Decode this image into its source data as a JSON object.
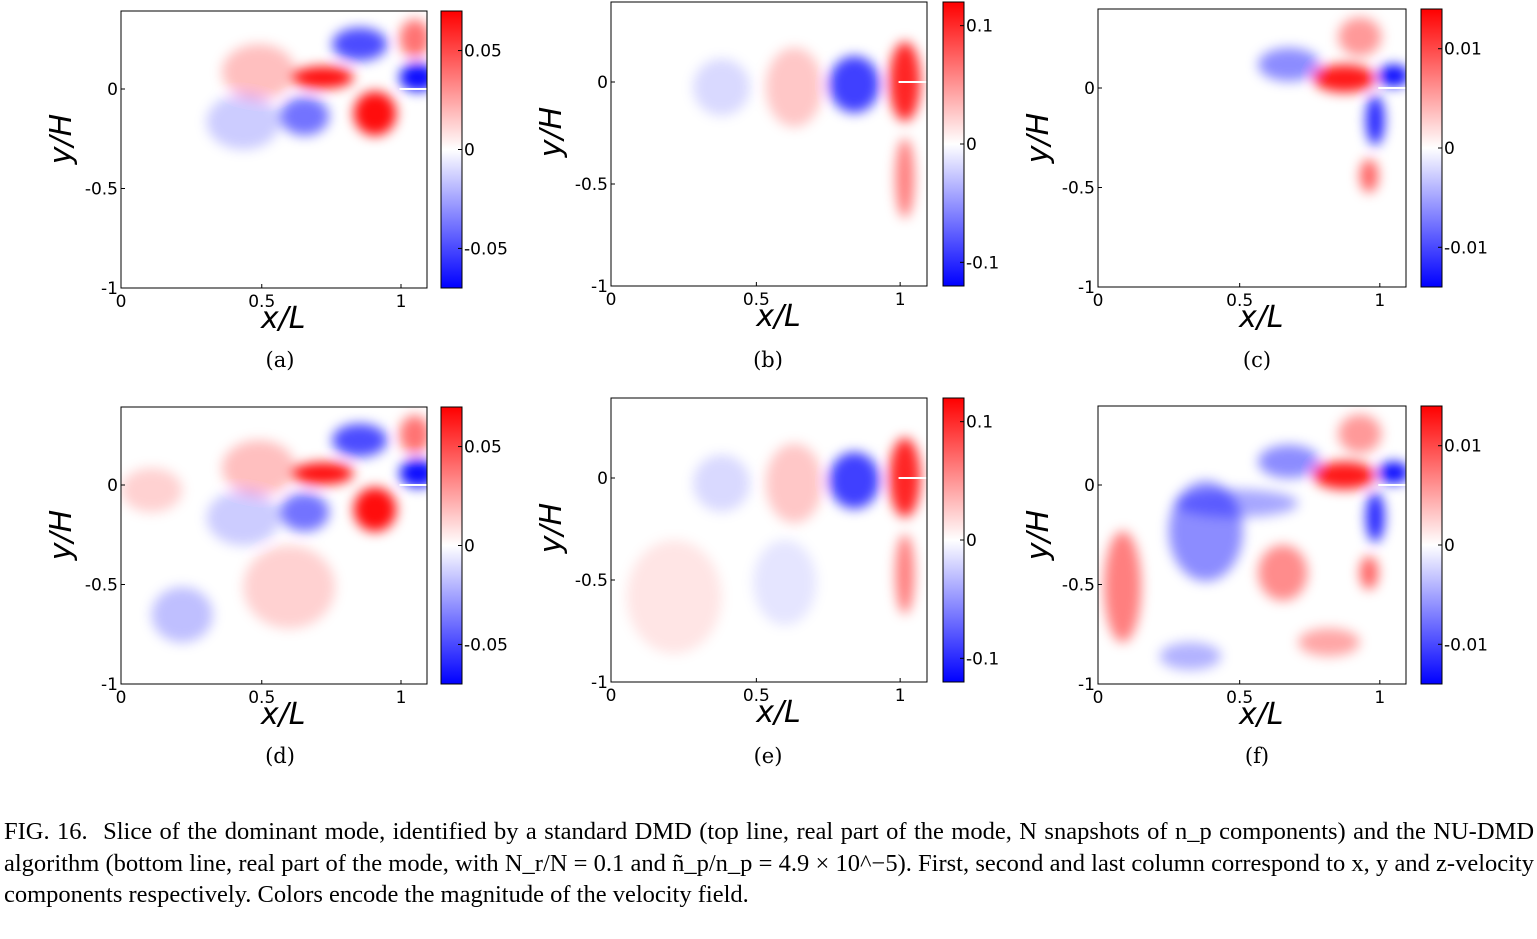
{
  "panels": [
    {
      "id": "a",
      "label": "(a)",
      "component": "x",
      "row": "top",
      "colorbar_ticks": [
        "0.05",
        "0",
        "-0.05"
      ],
      "cmax": 0.07,
      "xticks": [
        "0",
        "0.5",
        "1"
      ],
      "yticks": [
        "0",
        "-0.5",
        "-1"
      ],
      "xlabel": "x/L",
      "ylabel": "y/H"
    },
    {
      "id": "b",
      "label": "(b)",
      "component": "y",
      "row": "top",
      "colorbar_ticks": [
        "0.1",
        "0",
        "-0.1"
      ],
      "cmax": 0.12,
      "xticks": [
        "0",
        "0.5",
        "1"
      ],
      "yticks": [
        "0",
        "-0.5",
        "-1"
      ],
      "xlabel": "x/L",
      "ylabel": "y/H"
    },
    {
      "id": "c",
      "label": "(c)",
      "component": "z",
      "row": "top",
      "colorbar_ticks": [
        "0.01",
        "0",
        "-0.01"
      ],
      "cmax": 0.014,
      "xticks": [
        "0",
        "0.5",
        "1"
      ],
      "yticks": [
        "0",
        "-0.5",
        "-1"
      ],
      "xlabel": "x/L",
      "ylabel": "y/H"
    },
    {
      "id": "d",
      "label": "(d)",
      "component": "x",
      "row": "bottom",
      "colorbar_ticks": [
        "0.05",
        "0",
        "-0.05"
      ],
      "cmax": 0.07,
      "xticks": [
        "0",
        "0.5",
        "1"
      ],
      "yticks": [
        "0",
        "-0.5",
        "-1"
      ],
      "xlabel": "x/L",
      "ylabel": "y/H"
    },
    {
      "id": "e",
      "label": "(e)",
      "component": "y",
      "row": "bottom",
      "colorbar_ticks": [
        "0.1",
        "0",
        "-0.1"
      ],
      "cmax": 0.12,
      "xticks": [
        "0",
        "0.5",
        "1"
      ],
      "yticks": [
        "0",
        "-0.5",
        "-1"
      ],
      "xlabel": "x/L",
      "ylabel": "y/H"
    },
    {
      "id": "f",
      "label": "(f)",
      "component": "z",
      "row": "bottom",
      "colorbar_ticks": [
        "0.01",
        "0",
        "-0.01"
      ],
      "cmax": 0.014,
      "xticks": [
        "0",
        "0.5",
        "1"
      ],
      "yticks": [
        "0",
        "-0.5",
        "-1"
      ],
      "xlabel": "x/L",
      "ylabel": "y/H"
    }
  ],
  "colormap": {
    "negative": "#0000ff",
    "zero": "#ffffff",
    "positive": "#ff0000"
  },
  "caption": {
    "fig_label": "FIG. 16.",
    "text": "Slice of the dominant mode, identified by a standard DMD (top line, real part of the mode, N snapshots of n_p components) and the NU-DMD algorithm (bottom line, real part of the mode, with N_r/N = 0.1 and ñ_p/n_p = 4.9 × 10^−5). First, second and last column correspond to x, y and z-velocity components respectively. Colors encode the magnitude of the velocity field."
  }
}
